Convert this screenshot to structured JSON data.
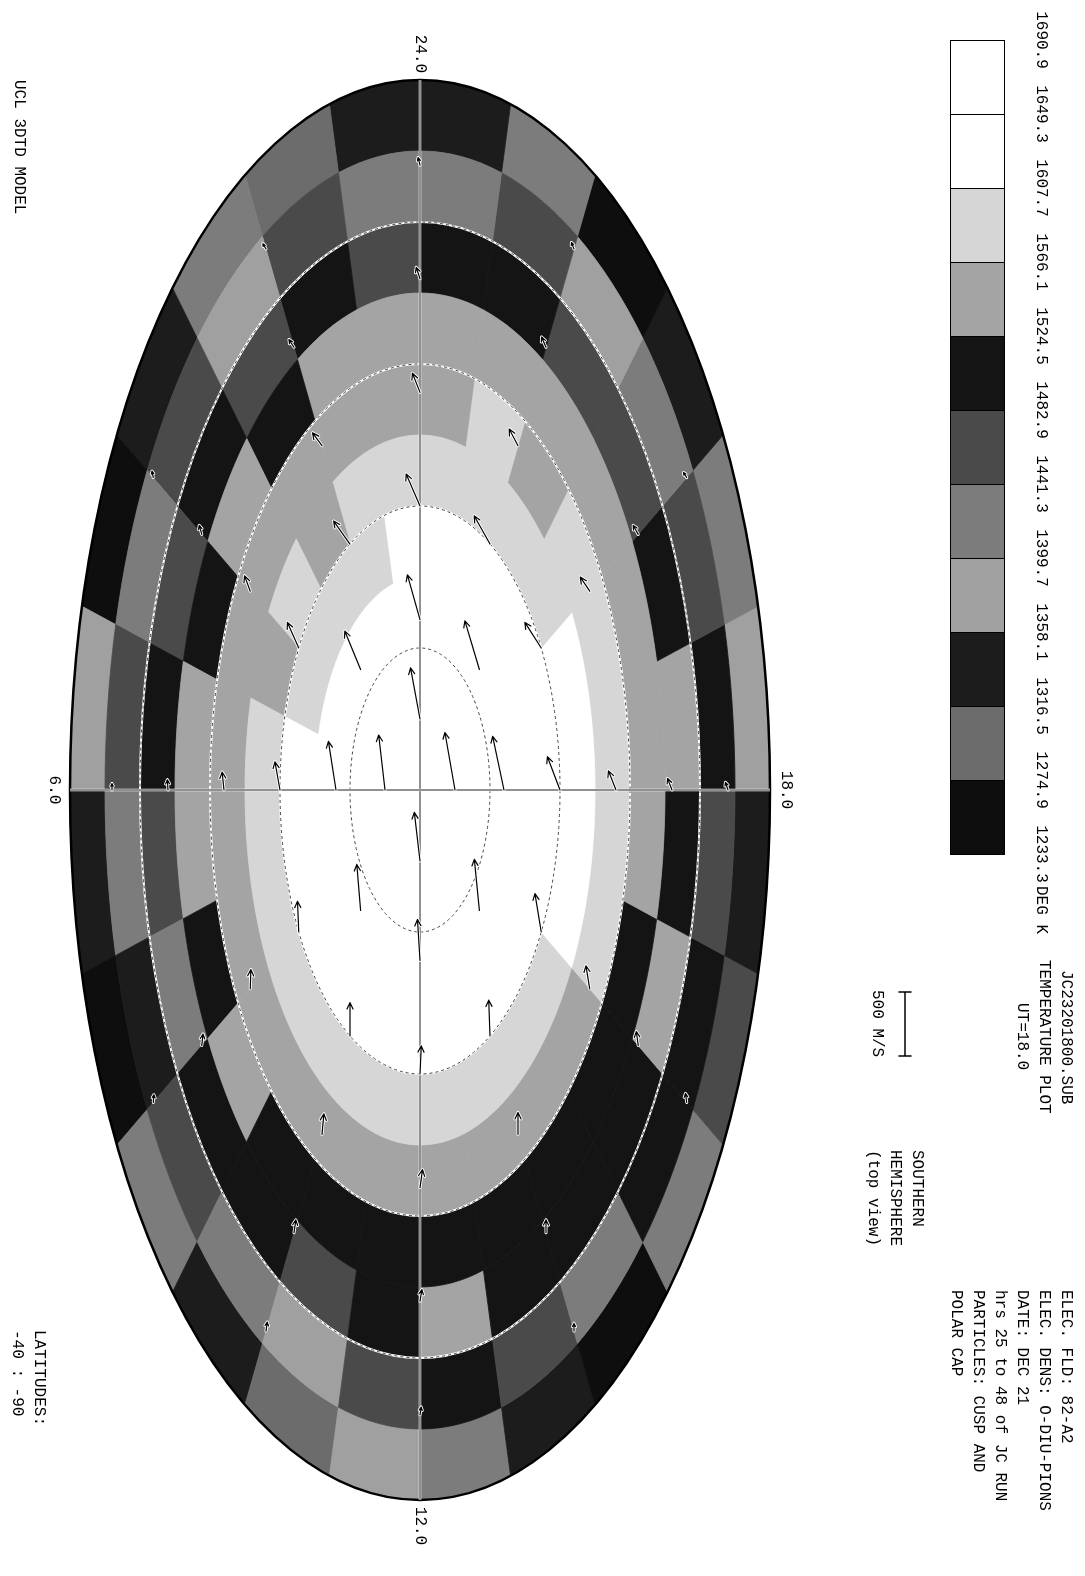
{
  "chart_data": {
    "type": "polar",
    "model": "UCL 3DTD MODEL",
    "file": "JC23201800.SUB",
    "title": "TEMPERATURE PLOT",
    "subtitle": "UT=18.0",
    "latitude_label": [
      "LATITUDES:",
      "-40 : -90"
    ],
    "hemisphere": [
      "SOUTHERN",
      "HEMISPHERE",
      "(top view)"
    ],
    "notes": [
      "ELEC. FLD: 82-A2",
      "ELEC. DENS: O-DIU-PIONS",
      "DATE: DEC 21",
      "hrs 25 to 48 of JC RUN",
      "PARTICLES: CUSP AND",
      "POLAR CAP"
    ],
    "latitudes": {
      "range": [
        -40,
        -90
      ],
      "rings": [
        -40,
        -50,
        -60,
        -70,
        -80
      ]
    },
    "local_time_ticks": [
      {
        "value": 24,
        "label": "24.0"
      },
      {
        "value": 6,
        "label": "6.0"
      },
      {
        "value": 12,
        "label": "12.0"
      },
      {
        "value": 18,
        "label": "18.0"
      }
    ],
    "colorbar": {
      "unit": "DEG K",
      "ticks": [
        1690.9,
        1649.3,
        1607.7,
        1566.1,
        1524.5,
        1482.9,
        1441.3,
        1399.7,
        1358.1,
        1316.5,
        1274.9,
        1233.3
      ],
      "colors": [
        "#ffffff",
        "#ffffff",
        "#d6d6d6",
        "#a4a4a4",
        "#141414",
        "#4a4a4a",
        "#7c7c7c",
        "#a0a0a0",
        "#1c1c1c",
        "#6c6c6c",
        "#0e0e0e"
      ]
    },
    "cells": {
      "lat_edges": [
        -40,
        -45,
        -50,
        -55,
        -60,
        -65,
        -70,
        -75,
        -80,
        -85,
        -90
      ],
      "lt_edges": [
        0,
        1,
        2,
        3,
        4,
        5,
        6,
        7,
        8,
        9,
        10,
        11,
        12,
        13,
        14,
        15,
        16,
        17,
        18,
        19,
        20,
        21,
        22,
        23,
        24
      ],
      "values": [
        [
          1340,
          1300,
          1420,
          1330,
          1260,
          1380,
          1340,
          1250,
          1410,
          1330,
          1290,
          1380,
          1420,
          1340,
          1270,
          1400,
          1450,
          1330,
          1390,
          1440,
          1330,
          1260,
          1400,
          1350
        ],
        [
          1420,
          1460,
          1380,
          1450,
          1400,
          1470,
          1430,
          1350,
          1460,
          1420,
          1380,
          1470,
          1500,
          1450,
          1400,
          1490,
          1510,
          1460,
          1500,
          1470,
          1430,
          1380,
          1460,
          1440
        ],
        [
          1470,
          1500,
          1460,
          1490,
          1450,
          1510,
          1470,
          1440,
          1490,
          1500,
          1460,
          1510,
          1530,
          1500,
          1490,
          1510,
          1540,
          1510,
          1530,
          1500,
          1480,
          1460,
          1500,
          1490
        ],
        [
          1530,
          1540,
          1520,
          1535,
          1500,
          1540,
          1530,
          1510,
          1530,
          1520,
          1500,
          1510,
          1505,
          1500,
          1495,
          1510,
          1520,
          1550,
          1560,
          1545,
          1540,
          1530,
          1550,
          1545
        ],
        [
          1555,
          1560,
          1545,
          1550,
          1540,
          1555,
          1550,
          1545,
          1560,
          1555,
          1550,
          1540,
          1550,
          1545,
          1550,
          1560,
          1575,
          1580,
          1590,
          1580,
          1570,
          1560,
          1570,
          1565
        ],
        [
          1580,
          1575,
          1560,
          1570,
          1565,
          1575,
          1585,
          1590,
          1595,
          1600,
          1590,
          1585,
          1580,
          1590,
          1595,
          1605,
          1615,
          1620,
          1625,
          1615,
          1600,
          1590,
          1595,
          1590
        ],
        [
          1610,
          1600,
          1590,
          1595,
          1600,
          1610,
          1615,
          1620,
          1625,
          1630,
          1620,
          1615,
          1610,
          1620,
          1630,
          1640,
          1650,
          1655,
          1650,
          1640,
          1630,
          1620,
          1625,
          1615
        ],
        [
          1640,
          1630,
          1620,
          1625,
          1630,
          1640,
          1645,
          1650,
          1655,
          1660,
          1655,
          1650,
          1645,
          1650,
          1660,
          1665,
          1670,
          1675,
          1670,
          1665,
          1660,
          1650,
          1650,
          1645
        ],
        [
          1665,
          1660,
          1655,
          1660,
          1665,
          1670,
          1670,
          1675,
          1675,
          1680,
          1675,
          1670,
          1670,
          1675,
          1680,
          1680,
          1685,
          1685,
          1680,
          1680,
          1675,
          1670,
          1670,
          1665
        ],
        [
          1680,
          1680,
          1678,
          1680,
          1682,
          1684,
          1684,
          1686,
          1686,
          1688,
          1686,
          1684,
          1684,
          1686,
          1688,
          1688,
          1689,
          1689,
          1688,
          1688,
          1686,
          1684,
          1682,
          1680
        ]
      ]
    },
    "wind_scale": {
      "value": 500,
      "label": "500 M/S"
    },
    "winds": {
      "lat": [
        -85,
        -85,
        -85,
        -85,
        -78,
        -78,
        -78,
        -78,
        -78,
        -78,
        -78,
        -78,
        -70,
        -70,
        -70,
        -70,
        -70,
        -70,
        -70,
        -70,
        -70,
        -70,
        -70,
        -70,
        -62,
        -62,
        -62,
        -62,
        -62,
        -62,
        -62,
        -62,
        -62,
        -62,
        -62,
        -62,
        -54,
        -54,
        -54,
        -54,
        -54,
        -54,
        -54,
        -54,
        -54,
        -54,
        -54,
        -54,
        -46,
        -46,
        -46,
        -46,
        -46,
        -46,
        -46,
        -46,
        -46,
        -46,
        -46,
        -46
      ],
      "lt": [
        0,
        6,
        12,
        18,
        0,
        3,
        6,
        9,
        12,
        15,
        18,
        21,
        0,
        2,
        4,
        6,
        8,
        10,
        12,
        14,
        16,
        18,
        20,
        22,
        0,
        2,
        4,
        6,
        8,
        10,
        12,
        14,
        16,
        18,
        20,
        22,
        0,
        2,
        4,
        6,
        8,
        10,
        12,
        14,
        16,
        18,
        20,
        22,
        0,
        2,
        4,
        6,
        8,
        10,
        12,
        14,
        16,
        18,
        20,
        22
      ],
      "sunward": [
        -400,
        -430,
        -380,
        -450,
        -350,
        -300,
        -380,
        -360,
        -320,
        -400,
        -420,
        -380,
        -250,
        -180,
        -200,
        -220,
        -240,
        -260,
        -220,
        -280,
        -300,
        -260,
        -200,
        -220,
        -150,
        -100,
        -120,
        -140,
        -150,
        -160,
        -140,
        -170,
        -180,
        -150,
        -110,
        -130,
        -90,
        -60,
        -70,
        -80,
        -90,
        -100,
        -90,
        -100,
        -110,
        -90,
        -70,
        -80,
        -60,
        -40,
        -50,
        -50,
        -60,
        -70,
        -60,
        -60,
        -70,
        -60,
        -40,
        -50
      ],
      "duskward": [
        -150,
        -100,
        -90,
        -160,
        -200,
        -250,
        -120,
        -60,
        -40,
        -80,
        -180,
        -230,
        -220,
        -260,
        -180,
        -80,
        -20,
        0,
        20,
        -20,
        -100,
        -200,
        -260,
        -250,
        -120,
        -150,
        -90,
        -30,
        10,
        30,
        40,
        0,
        -60,
        -120,
        -150,
        -140,
        -60,
        -80,
        -40,
        -10,
        20,
        30,
        30,
        0,
        -30,
        -70,
        -80,
        -70,
        -30,
        -50,
        -20,
        0,
        10,
        20,
        20,
        0,
        -20,
        -40,
        -50,
        -40
      ]
    }
  }
}
